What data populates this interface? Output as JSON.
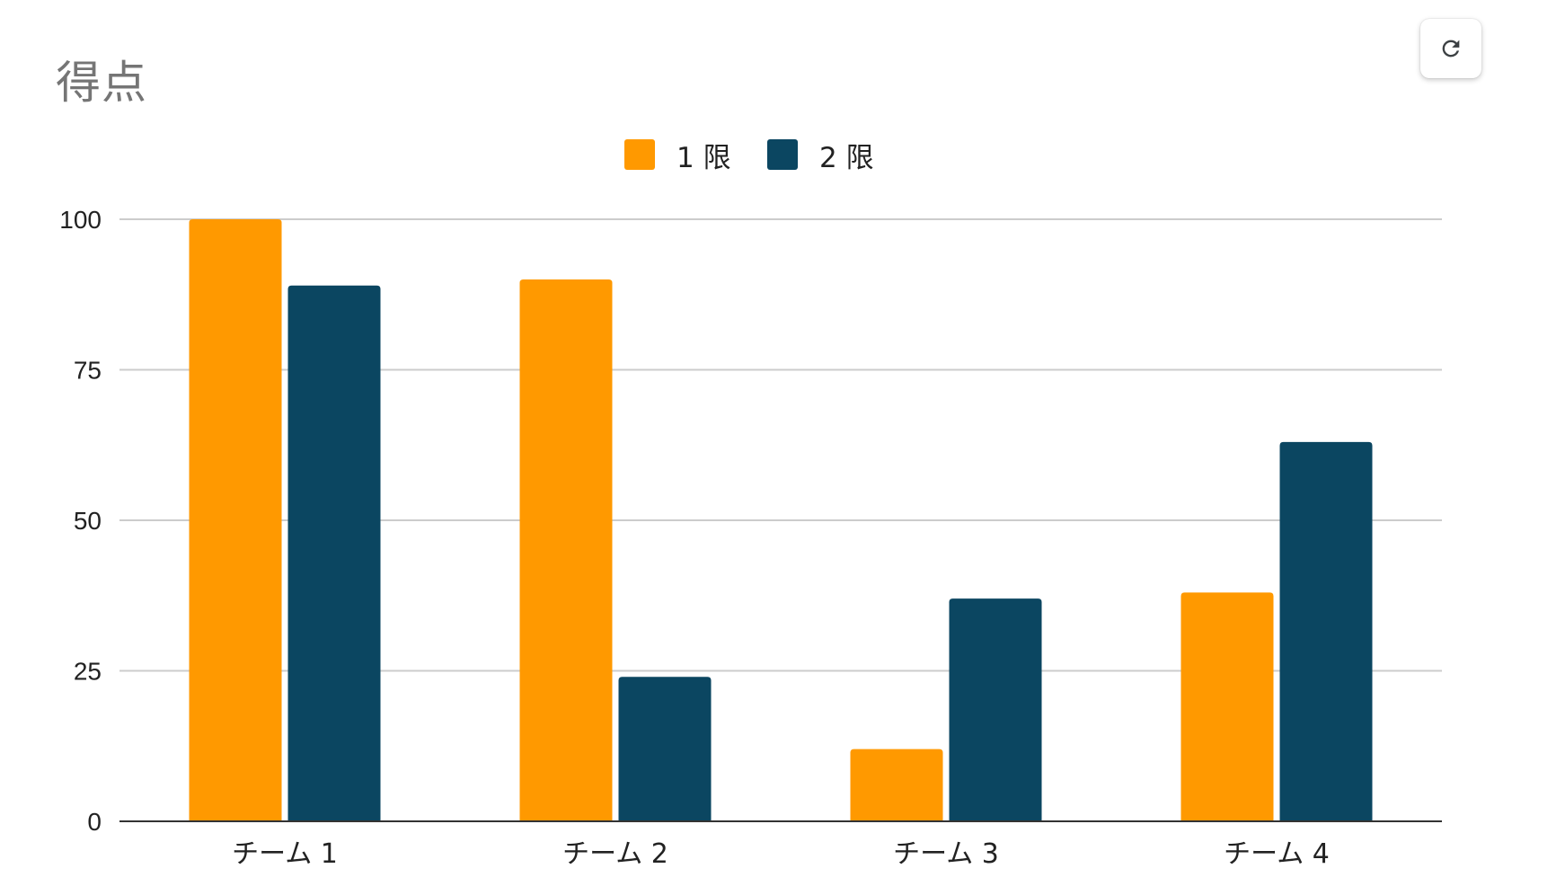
{
  "header": {
    "refresh_icon": "refresh-icon"
  },
  "chart_data": {
    "type": "bar",
    "title": "得点",
    "categories": [
      "チーム 1",
      "チーム 2",
      "チーム 3",
      "チーム 4"
    ],
    "series": [
      {
        "name": "1 限",
        "color": "#ff9900",
        "values": [
          100,
          90,
          12,
          38
        ]
      },
      {
        "name": "2 限",
        "color": "#0b4661",
        "values": [
          89,
          24,
          37,
          63
        ]
      }
    ],
    "ylim": [
      0,
      100
    ],
    "yticks": [
      0,
      25,
      50,
      75,
      100
    ],
    "grid": true,
    "legend": "top-center"
  }
}
